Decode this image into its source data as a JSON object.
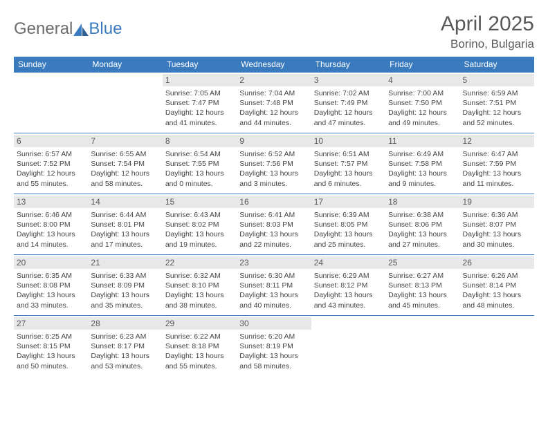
{
  "logo": {
    "part1": "General",
    "part2": "Blue"
  },
  "title": "April 2025",
  "location": "Borino, Bulgaria",
  "colors": {
    "accent": "#3a7bbf",
    "dayHeaderBg": "#3a7bbf",
    "dayHeaderText": "#ffffff",
    "dayNumBg": "#e8e8e8",
    "textMuted": "#595959"
  },
  "dayNames": [
    "Sunday",
    "Monday",
    "Tuesday",
    "Wednesday",
    "Thursday",
    "Friday",
    "Saturday"
  ],
  "weeks": [
    [
      null,
      null,
      {
        "n": "1",
        "sr": "7:05 AM",
        "ss": "7:47 PM",
        "dl": "12 hours and 41 minutes."
      },
      {
        "n": "2",
        "sr": "7:04 AM",
        "ss": "7:48 PM",
        "dl": "12 hours and 44 minutes."
      },
      {
        "n": "3",
        "sr": "7:02 AM",
        "ss": "7:49 PM",
        "dl": "12 hours and 47 minutes."
      },
      {
        "n": "4",
        "sr": "7:00 AM",
        "ss": "7:50 PM",
        "dl": "12 hours and 49 minutes."
      },
      {
        "n": "5",
        "sr": "6:59 AM",
        "ss": "7:51 PM",
        "dl": "12 hours and 52 minutes."
      }
    ],
    [
      {
        "n": "6",
        "sr": "6:57 AM",
        "ss": "7:52 PM",
        "dl": "12 hours and 55 minutes."
      },
      {
        "n": "7",
        "sr": "6:55 AM",
        "ss": "7:54 PM",
        "dl": "12 hours and 58 minutes."
      },
      {
        "n": "8",
        "sr": "6:54 AM",
        "ss": "7:55 PM",
        "dl": "13 hours and 0 minutes."
      },
      {
        "n": "9",
        "sr": "6:52 AM",
        "ss": "7:56 PM",
        "dl": "13 hours and 3 minutes."
      },
      {
        "n": "10",
        "sr": "6:51 AM",
        "ss": "7:57 PM",
        "dl": "13 hours and 6 minutes."
      },
      {
        "n": "11",
        "sr": "6:49 AM",
        "ss": "7:58 PM",
        "dl": "13 hours and 9 minutes."
      },
      {
        "n": "12",
        "sr": "6:47 AM",
        "ss": "7:59 PM",
        "dl": "13 hours and 11 minutes."
      }
    ],
    [
      {
        "n": "13",
        "sr": "6:46 AM",
        "ss": "8:00 PM",
        "dl": "13 hours and 14 minutes."
      },
      {
        "n": "14",
        "sr": "6:44 AM",
        "ss": "8:01 PM",
        "dl": "13 hours and 17 minutes."
      },
      {
        "n": "15",
        "sr": "6:43 AM",
        "ss": "8:02 PM",
        "dl": "13 hours and 19 minutes."
      },
      {
        "n": "16",
        "sr": "6:41 AM",
        "ss": "8:03 PM",
        "dl": "13 hours and 22 minutes."
      },
      {
        "n": "17",
        "sr": "6:39 AM",
        "ss": "8:05 PM",
        "dl": "13 hours and 25 minutes."
      },
      {
        "n": "18",
        "sr": "6:38 AM",
        "ss": "8:06 PM",
        "dl": "13 hours and 27 minutes."
      },
      {
        "n": "19",
        "sr": "6:36 AM",
        "ss": "8:07 PM",
        "dl": "13 hours and 30 minutes."
      }
    ],
    [
      {
        "n": "20",
        "sr": "6:35 AM",
        "ss": "8:08 PM",
        "dl": "13 hours and 33 minutes."
      },
      {
        "n": "21",
        "sr": "6:33 AM",
        "ss": "8:09 PM",
        "dl": "13 hours and 35 minutes."
      },
      {
        "n": "22",
        "sr": "6:32 AM",
        "ss": "8:10 PM",
        "dl": "13 hours and 38 minutes."
      },
      {
        "n": "23",
        "sr": "6:30 AM",
        "ss": "8:11 PM",
        "dl": "13 hours and 40 minutes."
      },
      {
        "n": "24",
        "sr": "6:29 AM",
        "ss": "8:12 PM",
        "dl": "13 hours and 43 minutes."
      },
      {
        "n": "25",
        "sr": "6:27 AM",
        "ss": "8:13 PM",
        "dl": "13 hours and 45 minutes."
      },
      {
        "n": "26",
        "sr": "6:26 AM",
        "ss": "8:14 PM",
        "dl": "13 hours and 48 minutes."
      }
    ],
    [
      {
        "n": "27",
        "sr": "6:25 AM",
        "ss": "8:15 PM",
        "dl": "13 hours and 50 minutes."
      },
      {
        "n": "28",
        "sr": "6:23 AM",
        "ss": "8:17 PM",
        "dl": "13 hours and 53 minutes."
      },
      {
        "n": "29",
        "sr": "6:22 AM",
        "ss": "8:18 PM",
        "dl": "13 hours and 55 minutes."
      },
      {
        "n": "30",
        "sr": "6:20 AM",
        "ss": "8:19 PM",
        "dl": "13 hours and 58 minutes."
      },
      null,
      null,
      null
    ]
  ],
  "labels": {
    "sunrise": "Sunrise:",
    "sunset": "Sunset:",
    "daylight": "Daylight:"
  }
}
